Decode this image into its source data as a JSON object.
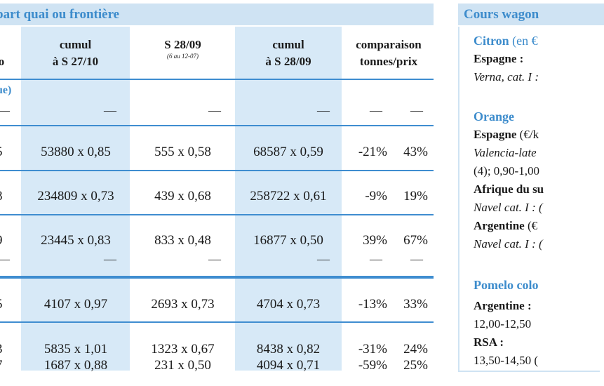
{
  "left_table": {
    "header_title": "part quai ou frontière",
    "column_headers": [
      {
        "line1": "",
        "line2": "o",
        "sub": ""
      },
      {
        "line1": "cumul",
        "line2": "à S 27/10",
        "sub": ""
      },
      {
        "line1": "S 28/09",
        "line2": "",
        "sub": "(6 au 12-07)"
      },
      {
        "line1": "cumul",
        "line2": "à S 28/09",
        "sub": ""
      },
      {
        "line1": "comparaison",
        "line2": "tonnes/prix",
        "sub": ""
      }
    ],
    "section_label": "ue)",
    "dash": "—",
    "rows": [
      {
        "c0": "5",
        "c1": "53880 x 0,85",
        "c2": "555 x 0,58",
        "c3": "68587 x 0,59",
        "c4": "-21%",
        "c5": "43%"
      },
      {
        "c0": "8",
        "c1": "234809 x 0,73",
        "c2": "439 x 0,68",
        "c3": "258722 x 0,61",
        "c4": "-9%",
        "c5": "19%"
      },
      {
        "c0": "9",
        "c1": "23445 x 0,83",
        "c2": "833 x 0,48",
        "c3": "16877 x 0,50",
        "c4": "39%",
        "c5": "67%"
      },
      {
        "c0": "5",
        "c1": "4107 x 0,97",
        "c2": "2693 x 0,73",
        "c3": "4704 x 0,73",
        "c4": "-13%",
        "c5": "33%"
      },
      {
        "c0": "3",
        "c1": "5835 x 1,01",
        "c2": "1323 x 0,67",
        "c3": "8438 x 0,82",
        "c4": "-31%",
        "c5": "24%"
      },
      {
        "c0": "7",
        "c1": "1687 x 0,88",
        "c2": "231 x 0,50",
        "c3": "4094 x 0,71",
        "c4": "-59%",
        "c5": "25%"
      }
    ]
  },
  "right_panel": {
    "header_title": "Cours wagon",
    "citron": {
      "name": "Citron",
      "unit": "(en €",
      "country": "Espagne :",
      "variety": "Verna, cat. I :"
    },
    "orange": {
      "name": "Orange",
      "espagne_country": "Espagne",
      "espagne_unit": "(€/k",
      "espagne_variety": "Valencia-late",
      "espagne_price": "(4); 0,90-1,00",
      "afrique_country": "Afrique du su",
      "afrique_variety": "Navel cat. I : (",
      "argentine_country": "Argentine",
      "argentine_unit": "(€",
      "argentine_variety": "Navel cat. I : ("
    },
    "pomelo": {
      "name": "Pomelo colo",
      "argentine_country": "Argentine :",
      "argentine_price": "12,00-12,50",
      "rsa_country": "RSA :",
      "rsa_price": "13,50-14,50 ("
    }
  }
}
